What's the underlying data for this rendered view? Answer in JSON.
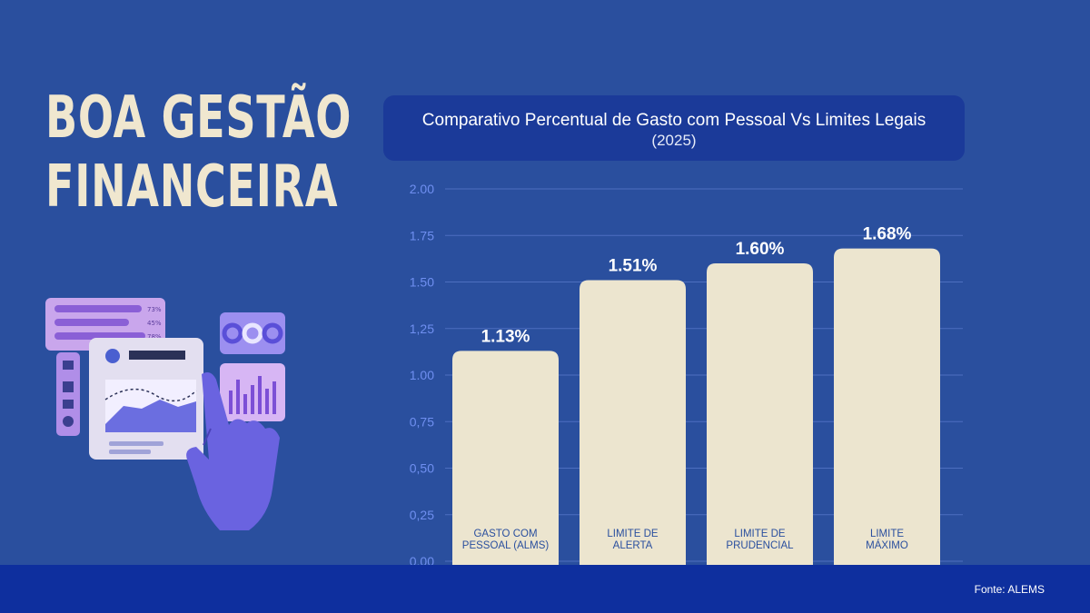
{
  "headline": {
    "line1": "BOA GESTÃO",
    "line2": "FINANCEIRA"
  },
  "illustration": {
    "icon": "dashboard-hand-icon",
    "stat_labels": [
      "73%",
      "45%",
      "78%"
    ]
  },
  "colors": {
    "background": "#2a4f9e",
    "header": "#1b3a99",
    "bar": "#ece5cf",
    "footer": "#0e2f9e",
    "text_light": "#f0e7cf"
  },
  "chart_data": {
    "type": "bar",
    "title": "Comparativo Percentual de Gasto com Pessoal Vs Limites Legais",
    "subtitle": "(2025)",
    "categories": [
      [
        "GASTO COM",
        "PESSOAL (ALMS)"
      ],
      [
        "LIMITE DE",
        "ALERTA"
      ],
      [
        "LIMITE DE",
        "PRUDENCIAL"
      ],
      [
        "LIMITE",
        "MÁXIMO"
      ]
    ],
    "values": [
      1.13,
      1.51,
      1.6,
      1.68
    ],
    "value_labels": [
      "1.13%",
      "1.51%",
      "1.60%",
      "1.68%"
    ],
    "ylim": [
      0,
      2
    ],
    "y_ticks": [
      "0,00",
      "0,25",
      "0,50",
      "0,75",
      "1.00",
      "1,25",
      "1.50",
      "1.75",
      "2.00"
    ],
    "grid": true
  },
  "footer": {
    "source": "Fonte: ALEMS"
  }
}
